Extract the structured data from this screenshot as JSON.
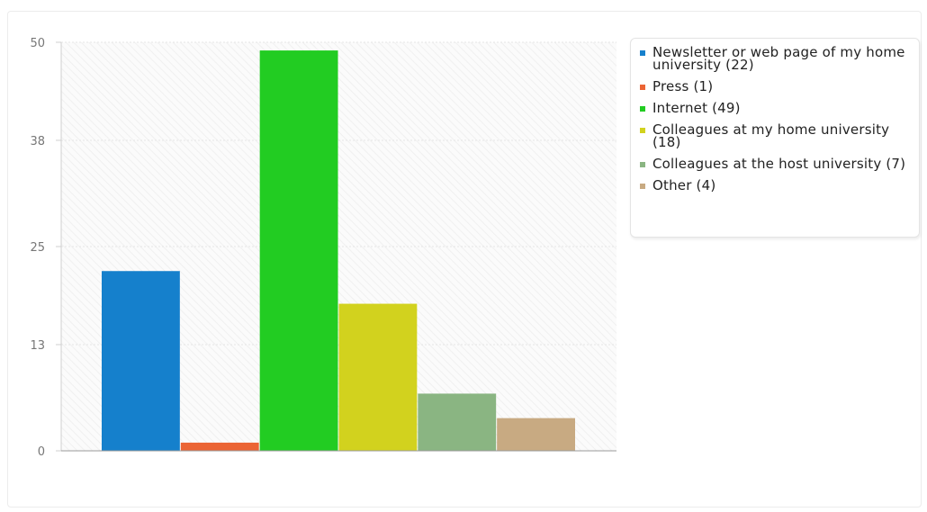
{
  "chart_data": {
    "type": "bar",
    "categories": [
      "Newsletter or web page of my home university",
      "Press",
      "Internet",
      "Colleagues at my home university",
      "Colleagues at the host university",
      "Other"
    ],
    "values": [
      22,
      1,
      49,
      18,
      7,
      4
    ],
    "colors": [
      "#1580cc",
      "#eb6434",
      "#22cc22",
      "#d2d21e",
      "#8ab582",
      "#c8aa82"
    ],
    "y_ticks": [
      0,
      13,
      25,
      38,
      50
    ],
    "ylim": [
      0,
      50
    ],
    "grid": true,
    "legend_position": "top-right",
    "legend": [
      {
        "label": "Newsletter or web page of my home university (22)",
        "color": "#1580cc"
      },
      {
        "label": "Press (1)",
        "color": "#eb6434"
      },
      {
        "label": "Internet (49)",
        "color": "#22cc22"
      },
      {
        "label": "Colleagues at my home university (18)",
        "color": "#d2d21e"
      },
      {
        "label": "Colleagues at the host university (7)",
        "color": "#8ab582"
      },
      {
        "label": "Other (4)",
        "color": "#c8aa82"
      }
    ]
  }
}
